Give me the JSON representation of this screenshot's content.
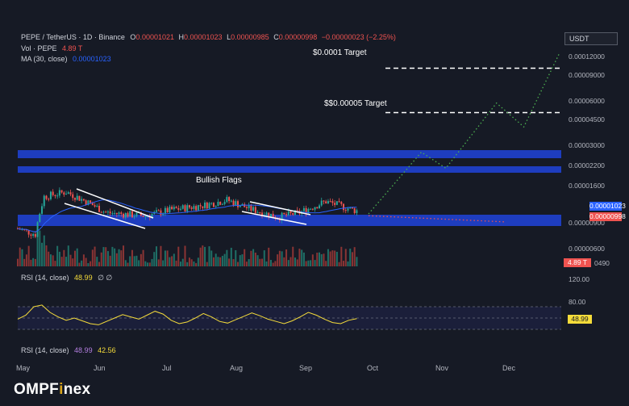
{
  "header": {
    "symbol_line": "PEPE / TetherUS · 1D · Binance",
    "ohlc": [
      {
        "label": "O",
        "value": "0.00001021"
      },
      {
        "label": "H",
        "value": "0.00001023"
      },
      {
        "label": "L",
        "value": "0.00000985"
      },
      {
        "label": "C",
        "value": "0.00000998"
      }
    ],
    "change": "−0.00000023 (−2.25%)",
    "vol_label": "Vol · PEPE",
    "vol_value": "4.89 T",
    "ma_label": "MA (30, close)",
    "ma_value": "0.00001023"
  },
  "currency_button": "USDT",
  "annotations": {
    "target1": "$0.0001 Target",
    "target2": "$$0.00005 Target",
    "pattern": "Bullish Flags"
  },
  "price_badges": {
    "ma": "0.00001023",
    "close": "0.00000998",
    "volume": "4.89 T"
  },
  "rsi_panel_1": {
    "label": "RSI (14, close)",
    "value": "48.99",
    "extra": "∅ ∅",
    "badge": "48.99"
  },
  "rsi_panel_2": {
    "label": "RSI (14, close)",
    "value": "48.99",
    "value2": "42.56"
  },
  "brand": {
    "part1": "OMPF",
    "part2": "i",
    "part3": "nex"
  },
  "colors": {
    "background": "#161a25",
    "up": "#26a69a",
    "down": "#ef5350",
    "support_band": "#1e3dbf",
    "ma_line": "#2962ff",
    "rsi_line": "#f5dc3a",
    "projection_up": "#4caf50",
    "projection_down": "#ef5350"
  },
  "chart_data": [
    {
      "type": "candlestick",
      "title": "PEPE / TetherUS · 1D · Binance",
      "x_months": [
        "May",
        "Jun",
        "Jul",
        "Aug",
        "Sep",
        "Oct",
        "Nov",
        "Dec"
      ],
      "y_scale": "log",
      "y_ticks": [
        "0.00012000",
        "0.00009000",
        "0.00006000",
        "0.00004500",
        "0.00003000",
        "0.00002200",
        "0.00001600",
        "0.00000900",
        "0.00000600",
        "0.00000490"
      ],
      "last": {
        "open": 1.021e-05,
        "high": 1.023e-05,
        "low": 9.85e-06,
        "close": 9.98e-06
      },
      "ma30_last": 1.023e-05,
      "target_levels": [
        {
          "label": "$0.0001 Target",
          "value": 0.0001
        },
        {
          "label": "$$0.00005 Target",
          "value": 5e-05
        }
      ],
      "resistance_bands": [
        2.6e-05,
        2.05e-05
      ],
      "support_band": [
        9.3e-06,
        1.02e-05
      ],
      "projection_bullish": [
        {
          "date": "Oct 1",
          "value": 1.03e-05
        },
        {
          "date": "Oct 25",
          "value": 2.7e-05
        },
        {
          "date": "Nov 5",
          "value": 2.1e-05
        },
        {
          "date": "Nov 28",
          "value": 5.8e-05
        },
        {
          "date": "Dec 10",
          "value": 4e-05
        },
        {
          "date": "Dec 26",
          "value": 0.000125
        }
      ],
      "projection_bearish": [
        {
          "date": "Oct 1",
          "value": 1e-05
        },
        {
          "date": "Dec 1",
          "value": 9.1e-06
        }
      ],
      "volume_last": "4.89 T"
    },
    {
      "type": "line",
      "title": "RSI (14, close)",
      "last": 48.99,
      "y_ticks": [
        120,
        80
      ],
      "levels": [
        70,
        50,
        30
      ],
      "series": [
        {
          "name": "RSI",
          "values": [
            48,
            55,
            70,
            73,
            60,
            52,
            46,
            50,
            45,
            40,
            38,
            44,
            50,
            56,
            52,
            48,
            55,
            62,
            57,
            46,
            40,
            43,
            50,
            58,
            52,
            44,
            41,
            47,
            53,
            59,
            54,
            48,
            44,
            40,
            45,
            52,
            60,
            55,
            48,
            42,
            40,
            46,
            48.99
          ]
        }
      ]
    },
    {
      "type": "line",
      "title": "RSI (14, close)",
      "series": [
        {
          "name": "RSI",
          "values": [
            48.99
          ]
        },
        {
          "name": "RSI-based MA",
          "values": [
            42.56
          ]
        }
      ]
    }
  ]
}
